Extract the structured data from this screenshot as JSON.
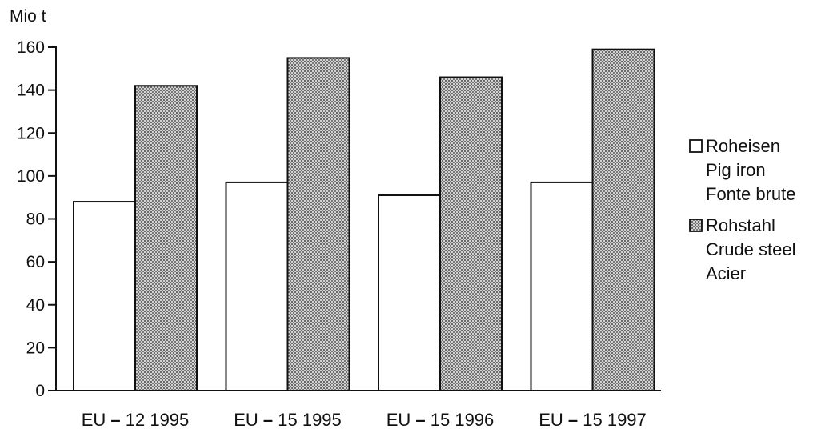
{
  "chart_data": {
    "type": "bar",
    "ylabel": "Mio t",
    "ylim": [
      0,
      160
    ],
    "yticks": [
      0,
      20,
      40,
      60,
      80,
      100,
      120,
      140,
      160
    ],
    "grid": false,
    "legend_position": "right",
    "categories": [
      "EU – 12 1995",
      "EU – 15 1995",
      "EU – 15 1996",
      "EU – 15 1997"
    ],
    "category_label_parts": [
      {
        "prefix": "EU",
        "suffix": "12 1995"
      },
      {
        "prefix": "EU",
        "suffix": "15 1995"
      },
      {
        "prefix": "EU",
        "suffix": "15 1996"
      },
      {
        "prefix": "EU",
        "suffix": "15 1997"
      }
    ],
    "series": [
      {
        "name": [
          "Roheisen",
          "Pig iron",
          "Fonte brute"
        ],
        "fill": "white",
        "values": [
          88,
          97,
          91,
          97
        ]
      },
      {
        "name": [
          "Rohstahl",
          "Crude steel",
          "Acier"
        ],
        "fill": "dotted",
        "values": [
          142,
          155,
          146,
          159
        ]
      }
    ]
  },
  "colors": {
    "axis": "#111111",
    "bar_border": "#111111",
    "white_fill": "#ffffff",
    "dot_color": "#6a6a6a"
  }
}
